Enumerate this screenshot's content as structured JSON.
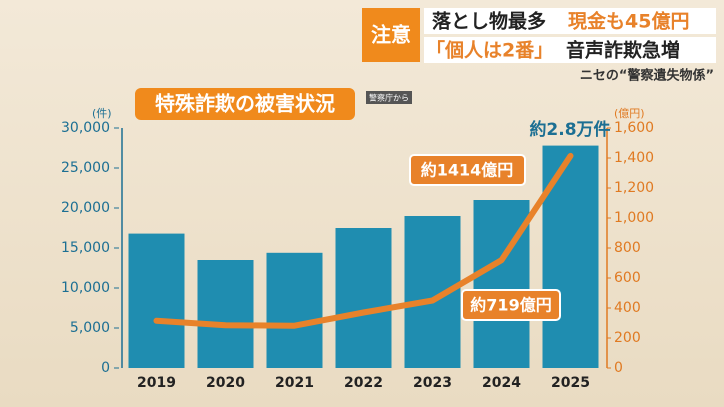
{
  "header": {
    "badge": "注意",
    "line1a": "落とし物最多",
    "line1b": "現金も45億円",
    "line2a": "「個人は2番」",
    "line2b": "音声詐欺急増",
    "subtitle": "ニセの“警察遺失物係”"
  },
  "chart_data": {
    "type": "bar",
    "title": "特殊詐欺の被害状況",
    "source": "警察庁から",
    "y_unit": "(件)",
    "y2_unit": "(億円)",
    "categories": [
      "2019",
      "2020",
      "2021",
      "2022",
      "2023",
      "2024",
      "2025"
    ],
    "series": [
      {
        "type": "bar",
        "color": "#1f8db0",
        "values": [
          16800,
          13500,
          14400,
          17500,
          19000,
          21000,
          27800
        ]
      },
      {
        "type": "line",
        "color": "#e8822a",
        "axis": "y2",
        "values": [
          315,
          285,
          282,
          370,
          450,
          719,
          1414
        ]
      }
    ],
    "ylim": [
      0,
      30000
    ],
    "yticks": [
      0,
      {
        "value": 5000,
        "label": "5,000"
      },
      {
        "value": 10000,
        "label": "10,000"
      },
      {
        "value": 15000,
        "label": "15,000"
      },
      {
        "value": 20000,
        "label": "20,000"
      },
      {
        "value": 25000,
        "label": "25,000"
      },
      {
        "value": 30000,
        "label": "30,000"
      }
    ],
    "y2lim": [
      0,
      1600
    ],
    "y2ticks": [
      0,
      200,
      400,
      600,
      800,
      {
        "value": 1000,
        "label": "1,000"
      },
      {
        "value": 1200,
        "label": "1,200"
      },
      {
        "value": 1400,
        "label": "1,400"
      },
      {
        "value": 1600,
        "label": "1,600"
      }
    ],
    "annotations": [
      {
        "text": "約2.8万件"
      },
      {
        "text": "約1414億円"
      },
      {
        "text": "約719億円"
      }
    ]
  }
}
